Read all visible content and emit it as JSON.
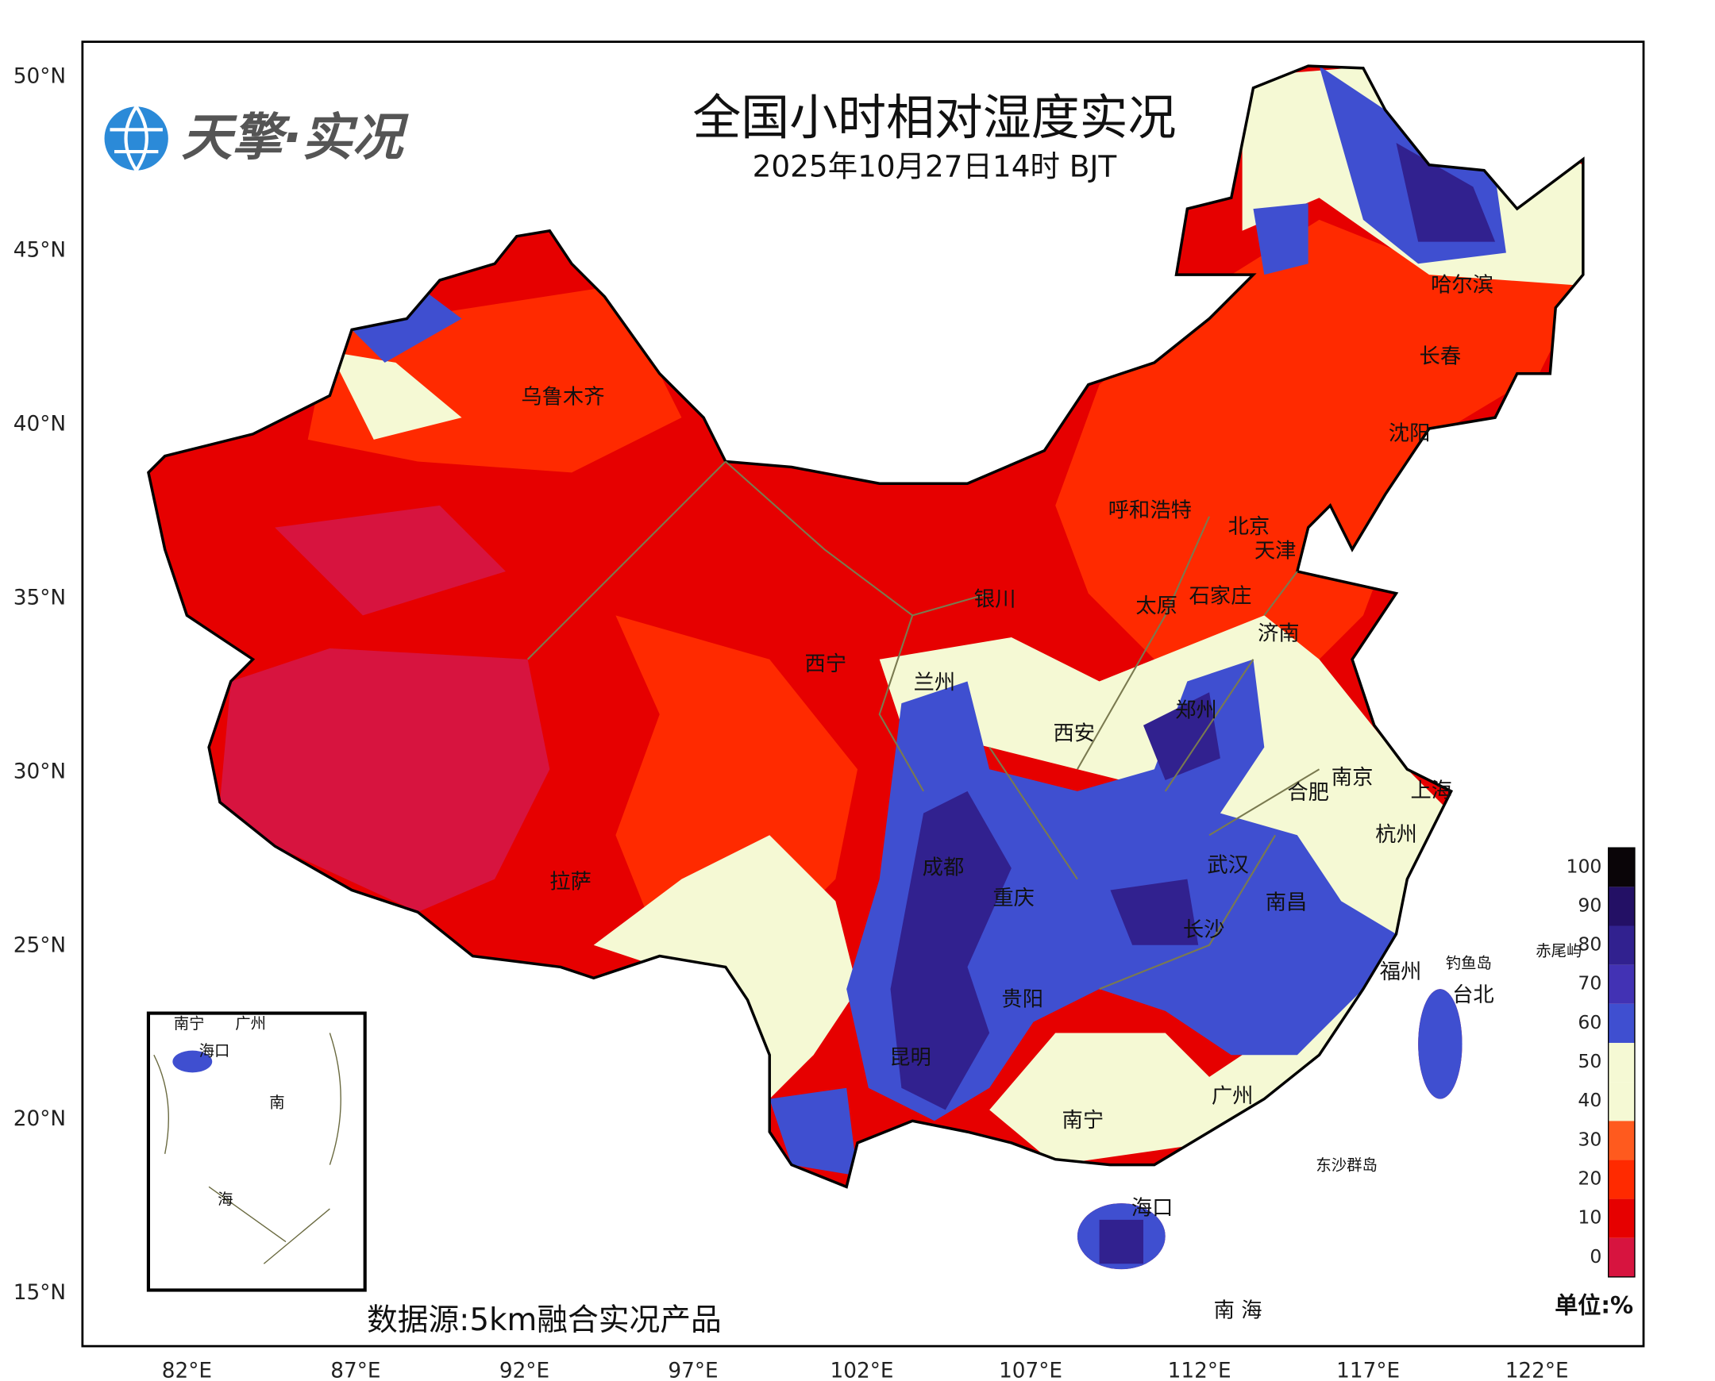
{
  "header": {
    "logo_text": "天擎·实况",
    "title": "全国小时相对湿度实况",
    "subtitle": "2025年10月27日14时 BJT"
  },
  "axes": {
    "lat_ticks": [
      {
        "value": 50,
        "label": "50°N"
      },
      {
        "value": 45,
        "label": "45°N"
      },
      {
        "value": 40,
        "label": "40°N"
      },
      {
        "value": 35,
        "label": "35°N"
      },
      {
        "value": 30,
        "label": "30°N"
      },
      {
        "value": 25,
        "label": "25°N"
      },
      {
        "value": 20,
        "label": "20°N"
      },
      {
        "value": 15,
        "label": "15°N"
      }
    ],
    "lon_ticks": [
      {
        "value": 82,
        "label": "82°E"
      },
      {
        "value": 87,
        "label": "87°E"
      },
      {
        "value": 92,
        "label": "92°E"
      },
      {
        "value": 97,
        "label": "97°E"
      },
      {
        "value": 102,
        "label": "102°E"
      },
      {
        "value": 107,
        "label": "107°E"
      },
      {
        "value": 112,
        "label": "112°E"
      },
      {
        "value": 117,
        "label": "117°E"
      },
      {
        "value": 122,
        "label": "122°E"
      }
    ]
  },
  "cities": [
    "乌鲁木齐",
    "哈尔滨",
    "长春",
    "沈阳",
    "呼和浩特",
    "北京",
    "天津",
    "石家庄",
    "太原",
    "银川",
    "济南",
    "西宁",
    "兰州",
    "郑州",
    "西安",
    "南京",
    "上海",
    "合肥",
    "杭州",
    "武汉",
    "成都",
    "重庆",
    "南昌",
    "长沙",
    "拉萨",
    "福州",
    "台北",
    "贵阳",
    "昆明",
    "广州",
    "南宁",
    "海口"
  ],
  "islands": [
    "钓鱼岛",
    "赤尾屿",
    "东沙群岛",
    "南 海"
  ],
  "inset": {
    "labels": [
      "南宁",
      "广州",
      "海口",
      "南",
      "海"
    ]
  },
  "legend": {
    "levels": [
      0,
      10,
      20,
      30,
      40,
      50,
      60,
      70,
      80,
      90,
      100
    ],
    "colors": [
      "#d7143f",
      "#e60000",
      "#ff2a00",
      "#ff5a1e",
      "#f5f9d4",
      "#f5f9d4",
      "#3f4fd0",
      "#4232b4",
      "#31218f",
      "#231065",
      "#0a0508"
    ],
    "unit": "单位:%"
  },
  "source": "数据源:5km融合实况产品"
}
